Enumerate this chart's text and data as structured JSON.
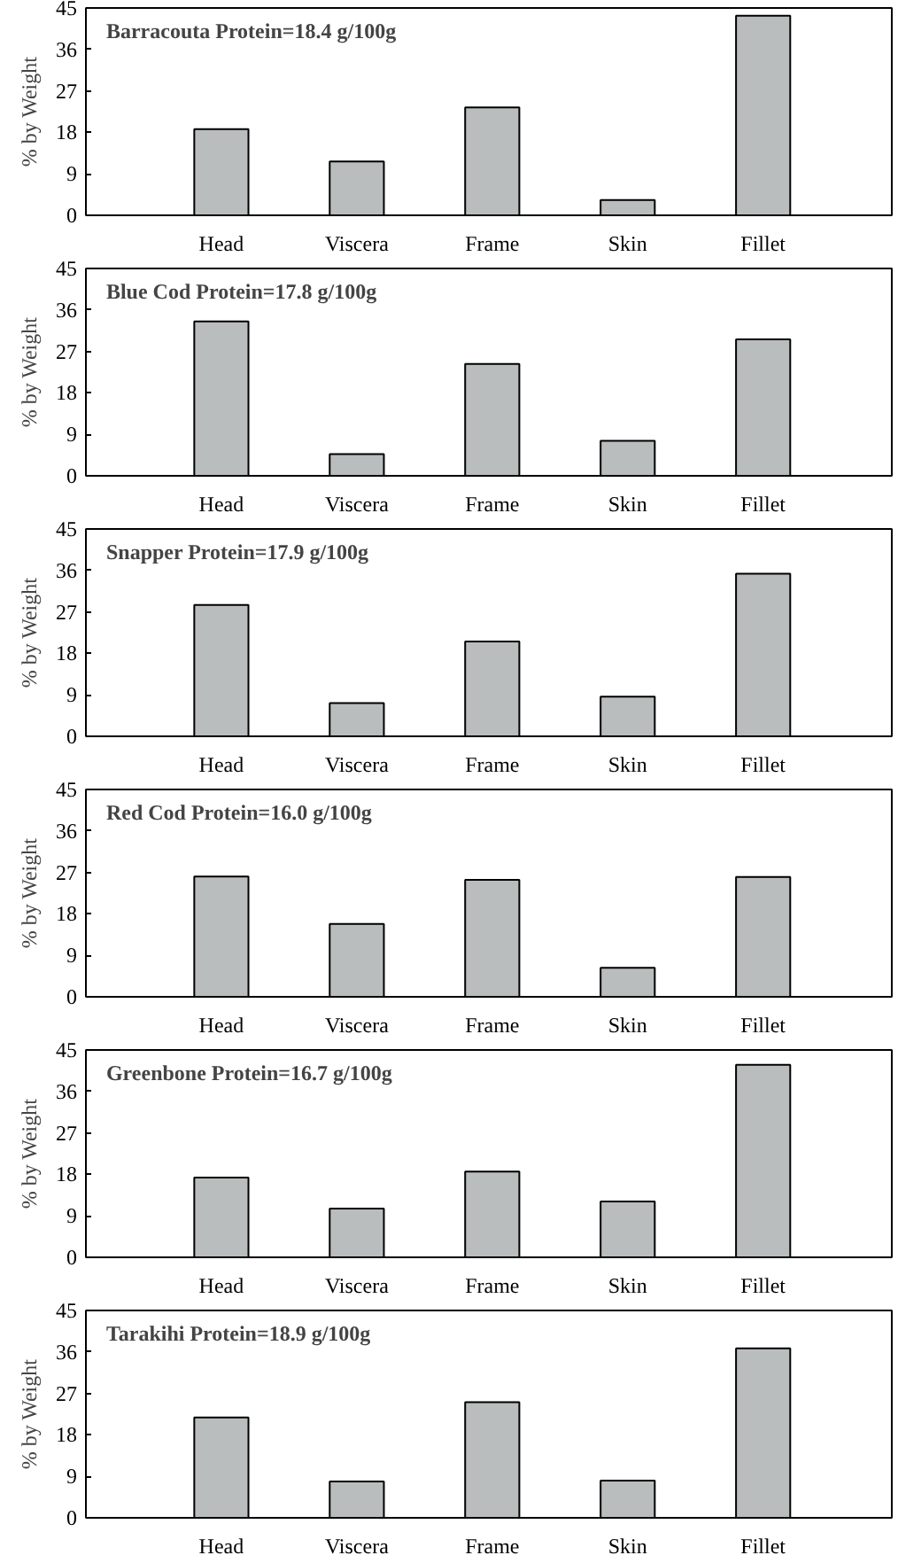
{
  "chart_data": [
    {
      "type": "bar",
      "title": "Barracouta Protein=18.4 g/100g",
      "ylabel": "% by Weight",
      "categories": [
        "Head",
        "Viscera",
        "Frame",
        "Skin",
        "Fillet"
      ],
      "values": [
        18.7,
        11.7,
        23.4,
        3.3,
        43.3
      ],
      "color": "#b9bdbd",
      "ylim": [
        0,
        45
      ],
      "yticks": [
        0,
        9,
        18,
        27,
        36,
        45
      ],
      "grid": false,
      "legend": false
    },
    {
      "type": "bar",
      "title": "Blue Cod Protein=17.8 g/100g",
      "ylabel": "% by Weight",
      "categories": [
        "Head",
        "Viscera",
        "Frame",
        "Skin",
        "Fillet"
      ],
      "values": [
        33.5,
        4.7,
        24.3,
        7.6,
        29.6
      ],
      "color": "#b9bdbd",
      "ylim": [
        0,
        45
      ],
      "yticks": [
        0,
        9,
        18,
        27,
        36,
        45
      ],
      "grid": false,
      "legend": false
    },
    {
      "type": "bar",
      "title": "Snapper Protein=17.9 g/100g",
      "ylabel": "% by Weight",
      "categories": [
        "Head",
        "Viscera",
        "Frame",
        "Skin",
        "Fillet"
      ],
      "values": [
        28.5,
        7.2,
        20.6,
        8.6,
        35.3
      ],
      "color": "#b9bdbd",
      "ylim": [
        0,
        45
      ],
      "yticks": [
        0,
        9,
        18,
        27,
        36,
        45
      ],
      "grid": false,
      "legend": false
    },
    {
      "type": "bar",
      "title": "Red Cod Protein=16.0 g/100g",
      "ylabel": "% by Weight",
      "categories": [
        "Head",
        "Viscera",
        "Frame",
        "Skin",
        "Fillet"
      ],
      "values": [
        26.1,
        15.8,
        25.4,
        6.3,
        26.0
      ],
      "color": "#b9bdbd",
      "ylim": [
        0,
        45
      ],
      "yticks": [
        0,
        9,
        18,
        27,
        36,
        45
      ],
      "grid": false,
      "legend": false
    },
    {
      "type": "bar",
      "title": "Greenbone Protein=16.7 g/100g",
      "ylabel": "% by Weight",
      "categories": [
        "Head",
        "Viscera",
        "Frame",
        "Skin",
        "Fillet"
      ],
      "values": [
        17.3,
        10.6,
        18.6,
        12.1,
        41.8
      ],
      "color": "#b9bdbd",
      "ylim": [
        0,
        45
      ],
      "yticks": [
        0,
        9,
        18,
        27,
        36,
        45
      ],
      "grid": false,
      "legend": false
    },
    {
      "type": "bar",
      "title": "Tarakihi Protein=18.9 g/100g",
      "ylabel": "% by Weight",
      "categories": [
        "Head",
        "Viscera",
        "Frame",
        "Skin",
        "Fillet"
      ],
      "values": [
        21.8,
        7.9,
        25.1,
        8.1,
        36.8
      ],
      "color": "#b9bdbd",
      "ylim": [
        0,
        45
      ],
      "yticks": [
        0,
        9,
        18,
        27,
        36,
        45
      ],
      "grid": false,
      "legend": false
    }
  ]
}
